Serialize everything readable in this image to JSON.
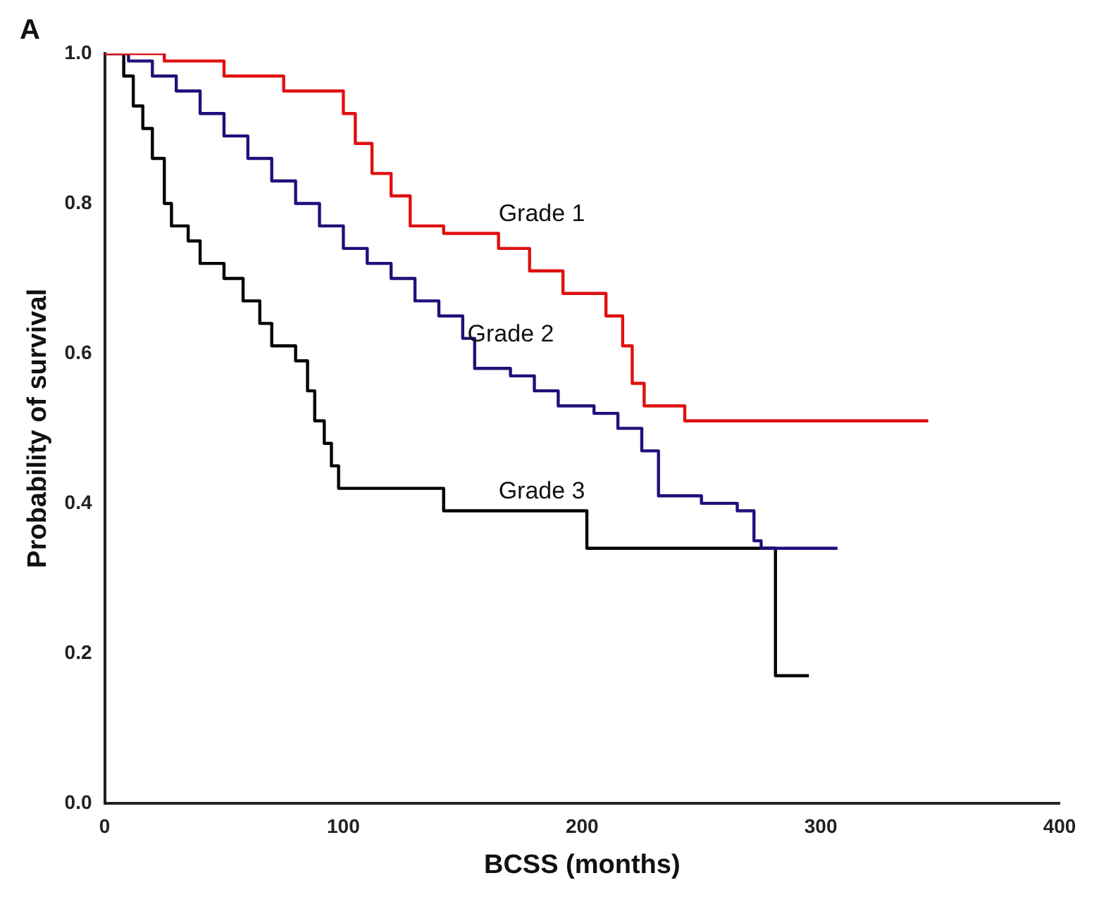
{
  "chart_data": {
    "type": "step",
    "xlabel": "BCSS (months)",
    "ylabel": "Probability of survival",
    "annotations": [
      "A"
    ],
    "xlim": [
      0,
      400
    ],
    "xticks": [
      0,
      100,
      200,
      300,
      400
    ],
    "ylim": [
      0,
      1
    ],
    "yticks": [
      {
        "value": 0,
        "label": "0.0"
      },
      0.2,
      0.4,
      0.6,
      0.8,
      {
        "value": 1,
        "label": "1.0"
      }
    ],
    "grid": false,
    "legend": false,
    "marker": "none",
    "line_style": "solid",
    "series": [
      {
        "name": "Grade 1",
        "color": "#e01010",
        "x": [
          0,
          25,
          50,
          75,
          100,
          105,
          112,
          120,
          128,
          142,
          165,
          178,
          192,
          210,
          217,
          221,
          226,
          243,
          345
        ],
        "values": [
          1.0,
          0.99,
          0.97,
          0.95,
          0.92,
          0.88,
          0.84,
          0.81,
          0.77,
          0.76,
          0.74,
          0.71,
          0.68,
          0.65,
          0.61,
          0.56,
          0.53,
          0.51,
          0.51
        ]
      },
      {
        "name": "Grade 2",
        "color": "#20107a",
        "x": [
          0,
          10,
          20,
          30,
          40,
          50,
          60,
          70,
          80,
          90,
          100,
          110,
          120,
          130,
          140,
          150,
          155,
          170,
          180,
          190,
          205,
          215,
          225,
          232,
          250,
          265,
          272,
          275,
          307
        ],
        "values": [
          1.0,
          0.99,
          0.97,
          0.95,
          0.92,
          0.89,
          0.86,
          0.83,
          0.8,
          0.77,
          0.74,
          0.72,
          0.7,
          0.67,
          0.65,
          0.62,
          0.58,
          0.57,
          0.55,
          0.53,
          0.52,
          0.5,
          0.47,
          0.41,
          0.4,
          0.39,
          0.35,
          0.34,
          0.34
        ]
      },
      {
        "name": "Grade 3",
        "color": "#000000",
        "x": [
          0,
          8,
          12,
          16,
          20,
          25,
          28,
          35,
          40,
          50,
          58,
          65,
          70,
          80,
          85,
          88,
          92,
          95,
          98,
          142,
          202,
          281,
          295
        ],
        "values": [
          1.0,
          0.97,
          0.93,
          0.9,
          0.86,
          0.8,
          0.77,
          0.75,
          0.72,
          0.7,
          0.67,
          0.64,
          0.61,
          0.59,
          0.55,
          0.51,
          0.48,
          0.45,
          0.42,
          0.39,
          0.34,
          0.17,
          0.17
        ]
      }
    ]
  }
}
